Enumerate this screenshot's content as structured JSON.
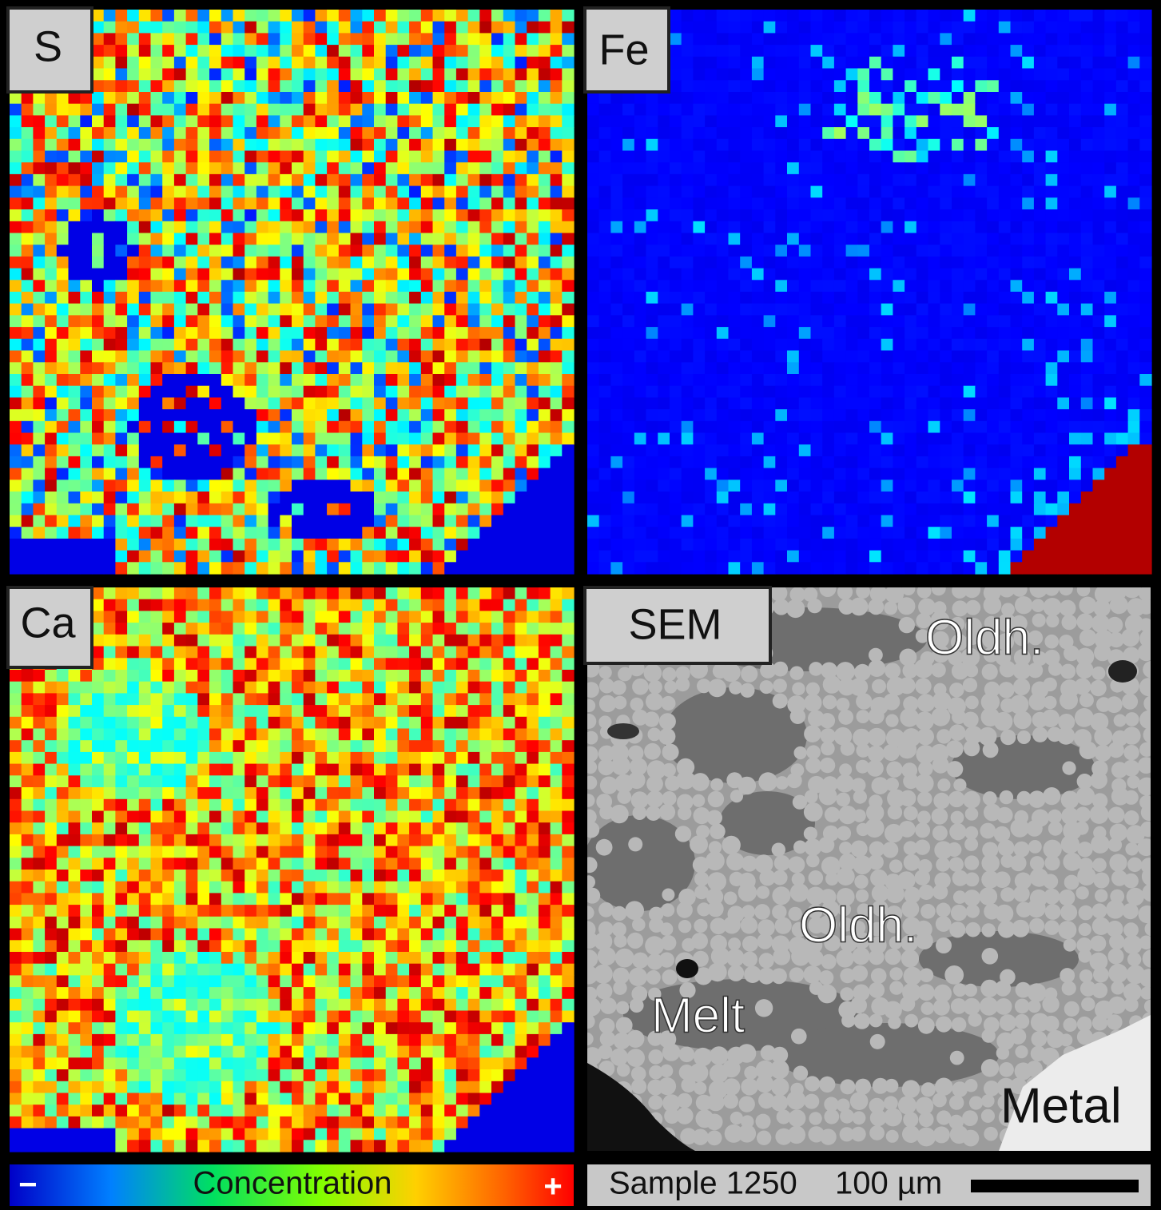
{
  "panels": [
    {
      "label": "S"
    },
    {
      "label": "Fe"
    },
    {
      "label": "Ca"
    },
    {
      "label": "SEM",
      "annotations": [
        "Oldh.",
        "Oldh.",
        "Melt",
        "Metal"
      ]
    }
  ],
  "colorbar": {
    "min_label": "−",
    "title": "Concentration",
    "max_label": "+"
  },
  "scale": {
    "sample": "Sample 1250",
    "length": "100 µm"
  }
}
